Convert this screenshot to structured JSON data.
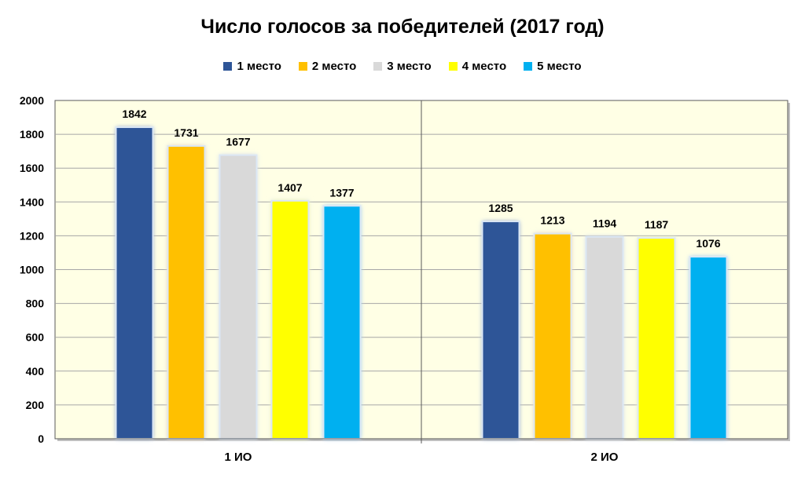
{
  "chart_data": {
    "type": "bar",
    "title": "Число голосов за победителей (2017 год)",
    "xlabel": "",
    "ylabel": "",
    "categories": [
      "1 ИО",
      "2 ИО"
    ],
    "series": [
      {
        "name": "1 место",
        "values": [
          1842,
          1285
        ],
        "color": "#2E5597"
      },
      {
        "name": "2 место",
        "values": [
          1731,
          1213
        ],
        "color": "#FFC000"
      },
      {
        "name": "3 место",
        "values": [
          1677,
          1194
        ],
        "color": "#D9D9D9"
      },
      {
        "name": "4 место",
        "values": [
          1407,
          1187
        ],
        "color": "#FFFF00"
      },
      {
        "name": "5 место",
        "values": [
          1377,
          1076
        ],
        "color": "#00B0F0"
      }
    ],
    "ylim": [
      0,
      2000
    ],
    "yticks": [
      0,
      200,
      400,
      600,
      800,
      1000,
      1200,
      1400,
      1600,
      1800,
      2000
    ],
    "grid": true,
    "legend_position": "top",
    "colors": {
      "plot_background": "#FFFFE5",
      "grid": "#A6A6A6",
      "axis": "#595959"
    }
  }
}
